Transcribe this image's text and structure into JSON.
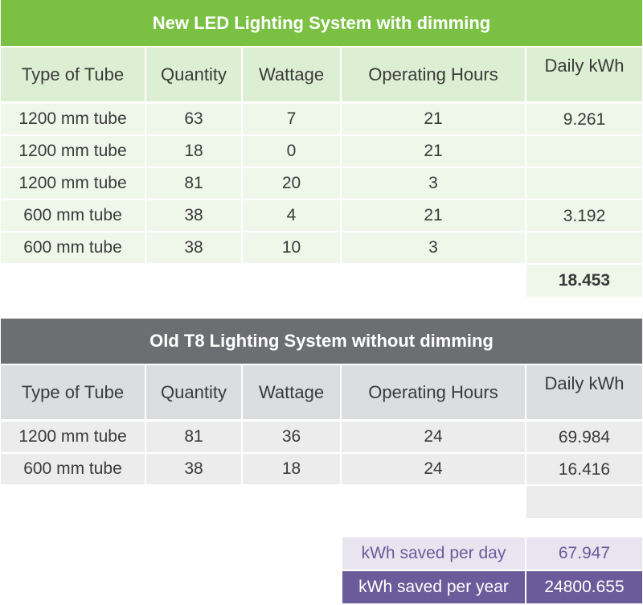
{
  "led": {
    "title": "New LED Lighting System with dimming",
    "headers": [
      "Type of Tube",
      "Quantity",
      "Wattage",
      "Operating Hours",
      "Daily kWh"
    ],
    "rows": [
      {
        "type": "1200 mm tube",
        "quantity": "63",
        "wattage": "7",
        "hours": "21",
        "daily": "9.261"
      },
      {
        "type": "1200 mm tube",
        "quantity": "18",
        "wattage": "0",
        "hours": "21",
        "daily": ""
      },
      {
        "type": "1200 mm tube",
        "quantity": "81",
        "wattage": "20",
        "hours": "3",
        "daily": ""
      },
      {
        "type": "600 mm tube",
        "quantity": "38",
        "wattage": "4",
        "hours": "21",
        "daily": "3.192"
      },
      {
        "type": "600 mm tube",
        "quantity": "38",
        "wattage": "10",
        "hours": "3",
        "daily": ""
      }
    ],
    "total": "18.453"
  },
  "old": {
    "title": "Old T8 Lighting System without dimming",
    "headers": [
      "Type of Tube",
      "Quantity",
      "Wattage",
      "Operating Hours",
      "Daily kWh"
    ],
    "rows": [
      {
        "type": "1200 mm tube",
        "quantity": "81",
        "wattage": "36",
        "hours": "24",
        "daily": "69.984"
      },
      {
        "type": "600 mm tube",
        "quantity": "38",
        "wattage": "18",
        "hours": "24",
        "daily": "16.416"
      }
    ],
    "total": ""
  },
  "summary": {
    "per_day_label": "kWh saved per day",
    "per_day_value": "67.947",
    "per_year_label": "kWh saved per year",
    "per_year_value": "24800.655"
  },
  "colors": {
    "led_accent": "#7ac143",
    "old_accent": "#6d6e71",
    "summary_accent": "#6b5b9a"
  }
}
